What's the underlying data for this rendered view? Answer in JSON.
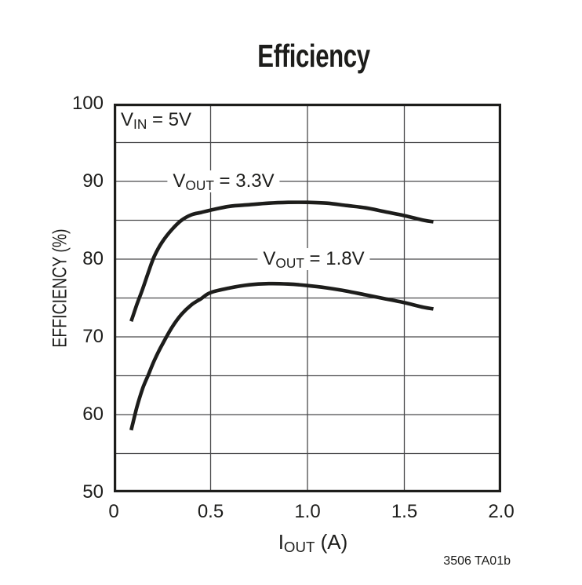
{
  "title": "Efficiency",
  "footer": "3506 TA01b",
  "colors": {
    "curve": "#1d1d1b",
    "border": "#1d1d1b",
    "grid": "#4a4a4c",
    "text": "#1d1d1b",
    "background": "#ffffff"
  },
  "annotations": {
    "vin": {
      "pre": "V",
      "sub": "IN",
      "post": " = 5V"
    },
    "vout33": {
      "pre": "V",
      "sub": "OUT",
      "post": " = 3.3V"
    },
    "vout18": {
      "pre": "V",
      "sub": "OUT",
      "post": " = 1.8V"
    }
  },
  "axes": {
    "y_label": "EFFICIENCY (%)",
    "x_label": {
      "pre": "I",
      "sub": "OUT",
      "post": " (A)"
    },
    "y_ticks": [
      "100",
      "90",
      "80",
      "70",
      "60",
      "50"
    ],
    "x_ticks": [
      "0",
      "0.5",
      "1.0",
      "1.5",
      "2.0"
    ]
  },
  "chart_data": {
    "type": "line",
    "title": "Efficiency",
    "xlabel": "IOUT (A)",
    "ylabel": "EFFICIENCY (%)",
    "xlim": [
      0,
      2.0
    ],
    "ylim": [
      50,
      100
    ],
    "x_major_ticks": [
      0,
      0.5,
      1.0,
      1.5,
      2.0
    ],
    "y_major_ticks": [
      100,
      90,
      80,
      70,
      60,
      50
    ],
    "x_gridlines": [
      0.5,
      1.0,
      1.5
    ],
    "y_gridlines": [
      55,
      60,
      65,
      70,
      75,
      80,
      85,
      90,
      95
    ],
    "grid": true,
    "legend_position": "inline-labels",
    "conditions": "VIN = 5V",
    "series": [
      {
        "name": "VOUT = 3.3V",
        "x": [
          0.09,
          0.12,
          0.15,
          0.18,
          0.21,
          0.25,
          0.3,
          0.35,
          0.4,
          0.45,
          0.5,
          0.6,
          0.7,
          0.8,
          0.9,
          1.0,
          1.1,
          1.2,
          1.3,
          1.4,
          1.5,
          1.6,
          1.65
        ],
        "y": [
          72.0,
          74.2,
          76.2,
          78.4,
          80.4,
          82.2,
          83.8,
          85.0,
          85.7,
          86.0,
          86.3,
          86.8,
          87.0,
          87.2,
          87.3,
          87.3,
          87.2,
          86.9,
          86.6,
          86.1,
          85.6,
          85.0,
          84.8
        ]
      },
      {
        "name": "VOUT = 1.8V",
        "x": [
          0.09,
          0.12,
          0.15,
          0.18,
          0.21,
          0.25,
          0.3,
          0.35,
          0.4,
          0.45,
          0.5,
          0.6,
          0.7,
          0.8,
          0.9,
          1.0,
          1.1,
          1.2,
          1.3,
          1.4,
          1.5,
          1.6,
          1.65
        ],
        "y": [
          58.0,
          61.0,
          63.4,
          65.2,
          67.0,
          69.0,
          71.2,
          72.9,
          74.1,
          74.9,
          75.7,
          76.3,
          76.7,
          76.85,
          76.8,
          76.6,
          76.3,
          75.9,
          75.4,
          74.9,
          74.4,
          73.8,
          73.6
        ]
      }
    ]
  }
}
